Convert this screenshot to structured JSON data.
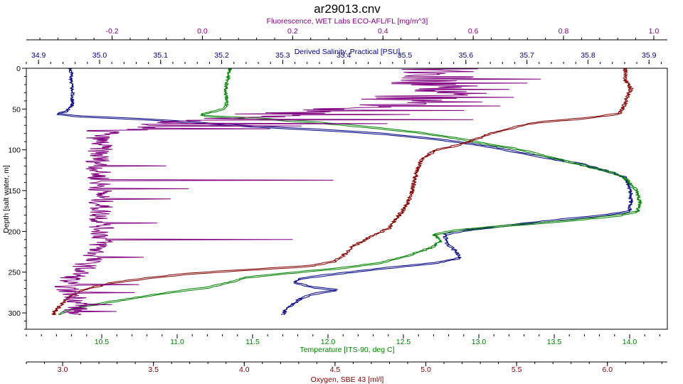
{
  "chart_data": {
    "type": "line",
    "title": "ar29013.cnv",
    "y_axis": {
      "label": "Depth [salt water, m]",
      "range": [
        0,
        320
      ],
      "ticks": [
        0,
        50,
        100,
        150,
        200,
        250,
        300
      ],
      "tick_labels": [
        "0",
        "50",
        "100",
        "150",
        "200",
        "250",
        "300"
      ]
    },
    "x_axes": [
      {
        "id": "fluorescence",
        "label": "Fluorescence, WET Labs ECO-AFL/FL [mg/m^3]",
        "position": "top",
        "color": "#800080",
        "range": [
          -0.39,
          1.03
        ],
        "ticks": [
          -0.2,
          0.0,
          0.2,
          0.4,
          0.6,
          0.8,
          1.0
        ],
        "tick_labels": [
          "-0.2",
          "0.0",
          "0.2",
          "0.4",
          "0.6",
          "0.8",
          "1.0"
        ]
      },
      {
        "id": "salinity",
        "label": "Derived Salinity, Practical [PSU]",
        "position": "top",
        "color": "#000080",
        "range": [
          34.88,
          35.93
        ],
        "ticks": [
          34.9,
          35.0,
          35.1,
          35.2,
          35.3,
          35.4,
          35.5,
          35.6,
          35.7,
          35.8,
          35.9
        ],
        "tick_labels": [
          "34.9",
          "35.0",
          "35.1",
          "35.2",
          "35.3",
          "35.4",
          "35.5",
          "35.6",
          "35.7",
          "35.8",
          "35.9"
        ]
      },
      {
        "id": "temperature",
        "label": "Temperature [ITS-90, deg C]",
        "position": "bottom",
        "color": "#008000",
        "range": [
          10.0,
          14.25
        ],
        "ticks": [
          10.5,
          11.0,
          11.5,
          12.0,
          12.5,
          13.0,
          13.5,
          14.0
        ],
        "tick_labels": [
          "10.5",
          "11.0",
          "11.5",
          "12.0",
          "12.5",
          "13.0",
          "13.5",
          "14.0"
        ]
      },
      {
        "id": "oxygen",
        "label": "Oxygen, SBE 43 [ml/l]",
        "position": "bottom",
        "color": "#800000",
        "range": [
          2.8,
          6.33
        ],
        "ticks": [
          3.0,
          3.5,
          4.0,
          4.5,
          5.0,
          5.5,
          6.0
        ],
        "tick_labels": [
          "3.0",
          "3.5",
          "4.0",
          "4.5",
          "5.0",
          "5.5",
          "6.0"
        ]
      }
    ],
    "series": [
      {
        "name": "Derived Salinity, Practical [PSU]",
        "axis": "salinity",
        "color": "#000080",
        "wiggle": 0.003,
        "points": [
          [
            34.95,
            0
          ],
          [
            34.955,
            5
          ],
          [
            34.953,
            15
          ],
          [
            34.956,
            30
          ],
          [
            34.955,
            45
          ],
          [
            34.945,
            52
          ],
          [
            34.93,
            55
          ],
          [
            34.96,
            58
          ],
          [
            35.08,
            62
          ],
          [
            35.16,
            66
          ],
          [
            35.26,
            71
          ],
          [
            35.37,
            75
          ],
          [
            35.47,
            80
          ],
          [
            35.55,
            86
          ],
          [
            35.61,
            92
          ],
          [
            35.65,
            97
          ],
          [
            35.69,
            103
          ],
          [
            35.74,
            110
          ],
          [
            35.79,
            117
          ],
          [
            35.83,
            125
          ],
          [
            35.86,
            133
          ],
          [
            35.865,
            140
          ],
          [
            35.87,
            150
          ],
          [
            35.87,
            165
          ],
          [
            35.868,
            175
          ],
          [
            35.82,
            180
          ],
          [
            35.74,
            186
          ],
          [
            35.67,
            192
          ],
          [
            35.6,
            198
          ],
          [
            35.565,
            203
          ],
          [
            35.57,
            215
          ],
          [
            35.585,
            225
          ],
          [
            35.59,
            232
          ],
          [
            35.55,
            238
          ],
          [
            35.46,
            245
          ],
          [
            35.38,
            252
          ],
          [
            35.33,
            257
          ],
          [
            35.32,
            262
          ],
          [
            35.35,
            268
          ],
          [
            35.39,
            271
          ],
          [
            35.35,
            276
          ],
          [
            35.33,
            281
          ],
          [
            35.32,
            287
          ],
          [
            35.305,
            294
          ],
          [
            35.3,
            303
          ]
        ]
      },
      {
        "name": "Temperature [ITS-90, deg C]",
        "axis": "temperature",
        "color": "#008000",
        "wiggle": 0.012,
        "points": [
          [
            11.35,
            0
          ],
          [
            11.34,
            10
          ],
          [
            11.32,
            25
          ],
          [
            11.33,
            40
          ],
          [
            11.32,
            48
          ],
          [
            11.25,
            52
          ],
          [
            11.15,
            56
          ],
          [
            11.2,
            58
          ],
          [
            11.55,
            61
          ],
          [
            11.95,
            66
          ],
          [
            12.3,
            72
          ],
          [
            12.6,
            78
          ],
          [
            12.85,
            85
          ],
          [
            13.05,
            92
          ],
          [
            13.25,
            98
          ],
          [
            13.42,
            106
          ],
          [
            13.6,
            114
          ],
          [
            13.78,
            122
          ],
          [
            13.9,
            128
          ],
          [
            13.97,
            134
          ],
          [
            14.0,
            140
          ],
          [
            14.05,
            150
          ],
          [
            14.07,
            165
          ],
          [
            14.05,
            175
          ],
          [
            13.92,
            180
          ],
          [
            13.6,
            186
          ],
          [
            13.2,
            192
          ],
          [
            12.85,
            198
          ],
          [
            12.7,
            203
          ],
          [
            12.75,
            210
          ],
          [
            12.7,
            218
          ],
          [
            12.55,
            228
          ],
          [
            12.35,
            238
          ],
          [
            12.05,
            245
          ],
          [
            11.7,
            251
          ],
          [
            11.45,
            256
          ],
          [
            11.35,
            262
          ],
          [
            11.2,
            268
          ],
          [
            10.95,
            274
          ],
          [
            10.75,
            280
          ],
          [
            10.55,
            286
          ],
          [
            10.35,
            292
          ],
          [
            10.25,
            298
          ],
          [
            10.2,
            303
          ]
        ]
      },
      {
        "name": "Oxygen, SBE 43 [ml/l]",
        "axis": "oxygen",
        "color": "#800000",
        "wiggle": 0.012,
        "points": [
          [
            6.1,
            0
          ],
          [
            6.1,
            15
          ],
          [
            6.13,
            25
          ],
          [
            6.1,
            40
          ],
          [
            6.08,
            50
          ],
          [
            6.06,
            55
          ],
          [
            5.9,
            60
          ],
          [
            5.6,
            66
          ],
          [
            5.48,
            72
          ],
          [
            5.35,
            80
          ],
          [
            5.25,
            88
          ],
          [
            5.15,
            95
          ],
          [
            5.05,
            100
          ],
          [
            4.98,
            110
          ],
          [
            4.95,
            125
          ],
          [
            4.93,
            145
          ],
          [
            4.9,
            165
          ],
          [
            4.85,
            180
          ],
          [
            4.8,
            195
          ],
          [
            4.7,
            205
          ],
          [
            4.6,
            218
          ],
          [
            4.55,
            228
          ],
          [
            4.5,
            236
          ],
          [
            4.35,
            242
          ],
          [
            4.05,
            246
          ],
          [
            3.7,
            251
          ],
          [
            3.45,
            257
          ],
          [
            3.25,
            263
          ],
          [
            3.1,
            272
          ],
          [
            3.02,
            282
          ],
          [
            2.98,
            292
          ],
          [
            2.95,
            300
          ],
          [
            2.96,
            303
          ]
        ]
      },
      {
        "name": "Fluorescence, WET Labs ECO-AFL/FL [mg/m^3]",
        "axis": "fluorescence",
        "color": "#800080",
        "profile": [
          [
            0,
            0.5
          ],
          [
            10,
            0.52
          ],
          [
            20,
            0.48
          ],
          [
            35,
            0.48
          ],
          [
            48,
            0.36
          ],
          [
            55,
            0.2
          ],
          [
            62,
            0.02
          ],
          [
            70,
            -0.12
          ],
          [
            78,
            -0.22
          ],
          [
            85,
            -0.23
          ],
          [
            95,
            -0.225
          ],
          [
            110,
            -0.23
          ],
          [
            130,
            -0.23
          ],
          [
            150,
            -0.225
          ],
          [
            170,
            -0.225
          ],
          [
            190,
            -0.225
          ],
          [
            210,
            -0.22
          ],
          [
            230,
            -0.24
          ],
          [
            250,
            -0.27
          ],
          [
            262,
            -0.3
          ],
          [
            272,
            -0.3
          ],
          [
            280,
            -0.28
          ],
          [
            290,
            -0.27
          ],
          [
            300,
            -0.29
          ],
          [
            303,
            -0.3
          ]
        ],
        "spikes": [
          [
            13,
            0.75
          ],
          [
            18,
            0.72
          ],
          [
            22,
            0.61
          ],
          [
            26,
            0.68
          ],
          [
            31,
            0.63
          ],
          [
            36,
            0.69
          ],
          [
            41,
            0.62
          ],
          [
            46,
            0.66
          ],
          [
            52,
            0.58
          ],
          [
            57,
            0.46
          ],
          [
            63,
            0.6
          ],
          [
            68,
            0.41
          ],
          [
            71,
            0.22
          ],
          [
            74,
            0.15
          ],
          [
            120,
            -0.08
          ],
          [
            137,
            0.29
          ],
          [
            148,
            -0.03
          ],
          [
            160,
            -0.07
          ],
          [
            190,
            -0.1
          ],
          [
            210,
            0.2
          ],
          [
            232,
            -0.13
          ],
          [
            258,
            -0.28
          ],
          [
            265,
            -0.14
          ],
          [
            275,
            -0.15
          ],
          [
            290,
            -0.2
          ],
          [
            298,
            -0.19
          ]
        ]
      }
    ]
  }
}
